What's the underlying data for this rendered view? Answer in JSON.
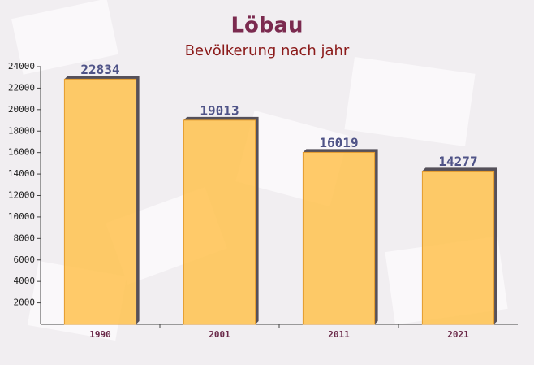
{
  "chart_data": {
    "type": "bar",
    "title": "Löbau",
    "subtitle": "Bevölkerung nach jahr",
    "categories": [
      "1990",
      "2001",
      "2011",
      "2021"
    ],
    "values": [
      22834,
      19013,
      16019,
      14277
    ],
    "color": "#ffc24f",
    "ylim": [
      0,
      24000
    ],
    "yticks": [
      2000,
      4000,
      6000,
      8000,
      10000,
      12000,
      14000,
      16000,
      18000,
      20000,
      22000,
      24000
    ]
  }
}
